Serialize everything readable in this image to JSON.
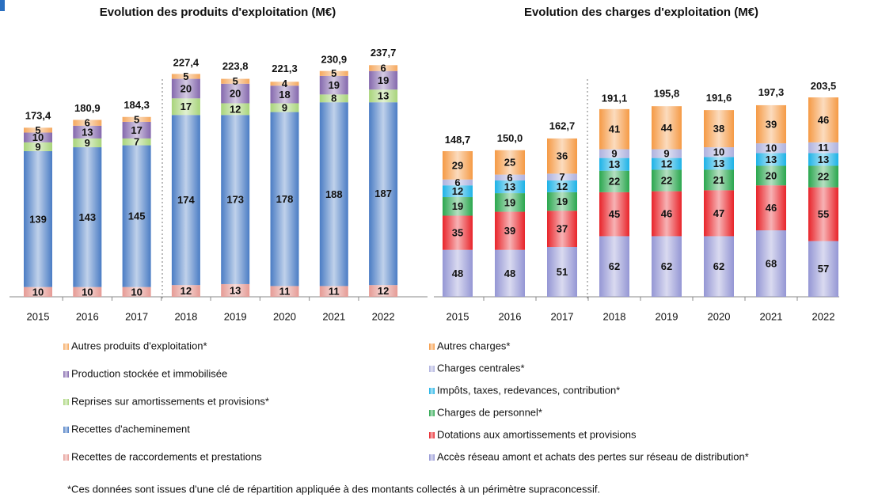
{
  "chart_data": [
    {
      "type": "bar",
      "stacked": true,
      "title": "Evolution des produits d'exploitation (M€)",
      "categories": [
        "2015",
        "2016",
        "2017",
        "2018",
        "2019",
        "2020",
        "2021",
        "2022"
      ],
      "totals": [
        173.4,
        180.9,
        184.3,
        227.4,
        223.8,
        221.3,
        230.9,
        237.7
      ],
      "total_labels": [
        "173,4",
        "180,9",
        "184,3",
        "227,4",
        "223,8",
        "221,3",
        "230,9",
        "237,7"
      ],
      "series": [
        {
          "name": "Recettes de raccordements et prestations",
          "color": "#e59a94",
          "values": [
            10,
            10,
            10,
            12,
            13,
            11,
            11,
            12
          ]
        },
        {
          "name": "Recettes d'acheminement",
          "color": "#4a7cc4",
          "values": [
            139,
            143,
            145,
            174,
            173,
            178,
            188,
            187
          ]
        },
        {
          "name": "Reprises sur amortissements et provisions*",
          "color": "#a8d47a",
          "values": [
            9,
            9,
            7,
            17,
            12,
            9,
            8,
            13
          ]
        },
        {
          "name": "Production stockée et immobilisée",
          "color": "#8468ad",
          "values": [
            10,
            13,
            17,
            20,
            20,
            18,
            19,
            19
          ]
        },
        {
          "name": "Autres produits d'exploitation*",
          "color": "#f5a85e",
          "values": [
            5,
            6,
            5,
            5,
            5,
            4,
            5,
            6
          ]
        }
      ]
    },
    {
      "type": "bar",
      "stacked": true,
      "title": "Evolution des charges d'exploitation (M€)",
      "categories": [
        "2015",
        "2016",
        "2017",
        "2018",
        "2019",
        "2020",
        "2021",
        "2022"
      ],
      "totals": [
        148.7,
        150.0,
        162.7,
        191.1,
        195.8,
        191.6,
        197.3,
        203.5
      ],
      "total_labels": [
        "148,7",
        "150,0",
        "162,7",
        "191,1",
        "195,8",
        "191,6",
        "197,3",
        "203,5"
      ],
      "series": [
        {
          "name": "Accès réseau amont et achats des pertes sur réseau de distribution*",
          "color": "#9496d4",
          "values": [
            48,
            48,
            51,
            62,
            62,
            62,
            68,
            57
          ]
        },
        {
          "name": "Dotations aux amortissements et provisions",
          "color": "#e8242a",
          "values": [
            35,
            39,
            37,
            45,
            46,
            47,
            46,
            55
          ]
        },
        {
          "name": "Charges de personnel*",
          "color": "#2aa64e",
          "values": [
            19,
            19,
            19,
            22,
            22,
            21,
            20,
            22
          ]
        },
        {
          "name": "Impôts, taxes, redevances, contribution*",
          "color": "#1db2e6",
          "values": [
            12,
            13,
            12,
            13,
            12,
            13,
            13,
            13
          ]
        },
        {
          "name": "Charges centrales*",
          "color": "#aeb1de",
          "values": [
            6,
            6,
            7,
            9,
            9,
            10,
            10,
            11
          ]
        },
        {
          "name": "Autres charges*",
          "color": "#f59a45",
          "values": [
            29,
            25,
            36,
            41,
            44,
            38,
            39,
            46
          ]
        }
      ]
    }
  ],
  "footnote": "*Ces données sont issues d'une clé de répartition appliquée à des montants collectés à un périmètre supraconcessif."
}
